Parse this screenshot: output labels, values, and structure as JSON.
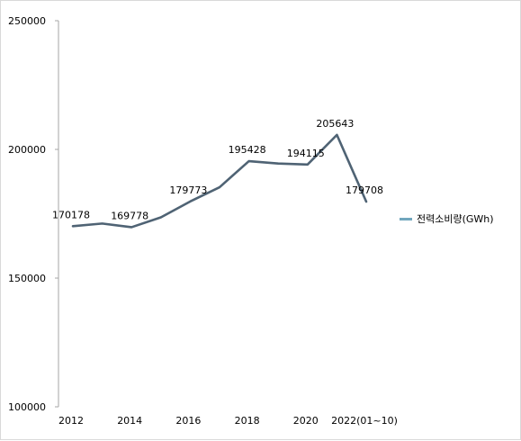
{
  "chart_data": {
    "type": "line",
    "x": [
      "2012",
      "2013",
      "2014",
      "2015",
      "2016",
      "2017",
      "2018",
      "2019",
      "2020",
      "2021",
      "2022(01~10)"
    ],
    "xtick_labels": [
      "2012",
      "2014",
      "2016",
      "2018",
      "2020",
      "2022(01~10)"
    ],
    "series": [
      {
        "name": "전력소비량(GWh)",
        "values": [
          170178,
          171200,
          169778,
          173600,
          179773,
          185300,
          195428,
          194500,
          194115,
          205643,
          179708
        ],
        "data_labels": [
          "170178",
          "",
          "169778",
          "",
          "179773",
          "",
          "195428",
          "",
          "194115",
          "205643",
          "179708"
        ]
      }
    ],
    "ylim": [
      100000,
      250000
    ],
    "yticks": [
      "100000",
      "150000",
      "200000",
      "250000"
    ],
    "grid": false,
    "legend": "right",
    "colors": {
      "line": "#4f6374",
      "legend": "#71a6bd"
    }
  }
}
